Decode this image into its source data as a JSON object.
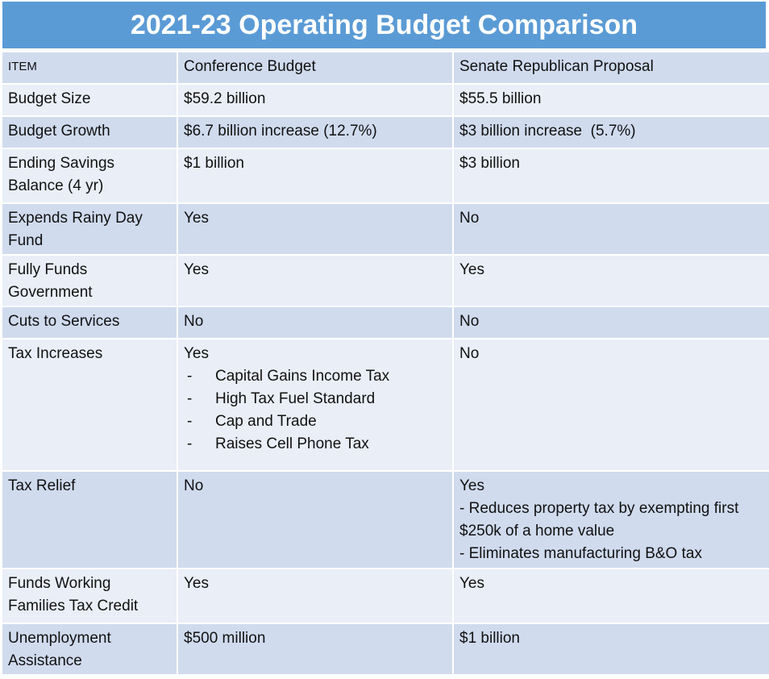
{
  "title": "2021-23 Operating Budget Comparison",
  "columns": [
    "ITEM",
    "Conference Budget",
    "Senate Republican Proposal"
  ],
  "rows": [
    {
      "item": "Budget Size",
      "conference": "$59.2 billion",
      "senate": "$55.5 billion"
    },
    {
      "item": "Budget Growth",
      "conference": "$6.7 billion increase (12.7%)",
      "senate": "$3 billion increase  (5.7%)"
    },
    {
      "item": "Ending Savings Balance (4 yr)",
      "conference": "$1 billion",
      "senate": "$3 billion"
    },
    {
      "item": "Expends Rainy Day Fund",
      "conference": "Yes",
      "senate": "No"
    },
    {
      "item": "Fully Funds Government",
      "conference": "Yes",
      "senate": "Yes"
    },
    {
      "item": "Cuts to Services",
      "conference": "No",
      "senate": "No"
    },
    {
      "item": "Tax Increases",
      "conference": "Yes",
      "conference_list": [
        "Capital Gains Income Tax",
        "High Tax Fuel Standard",
        "Cap and Trade",
        "Raises Cell Phone Tax"
      ],
      "senate": "No"
    },
    {
      "item": "Tax Relief",
      "conference": "No",
      "senate": "Yes",
      "senate_lines": [
        "- Reduces property tax by exempting first $250k of a home value",
        "- Eliminates manufacturing B&O tax"
      ]
    },
    {
      "item": "Funds Working Families Tax Credit",
      "conference": "Yes",
      "senate": "Yes"
    },
    {
      "item": "Unemployment Assistance",
      "conference": "$500 million",
      "senate": "$1 billion"
    }
  ]
}
